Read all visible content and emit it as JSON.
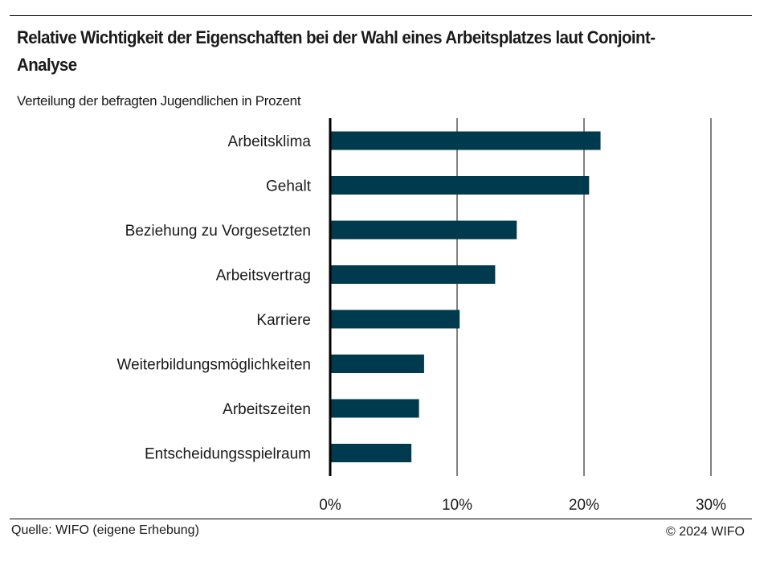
{
  "chart_data": {
    "type": "bar",
    "orientation": "horizontal",
    "title": "Relative Wichtigkeit der Eigenschaften bei der Wahl eines Arbeitsplatzes laut Conjoint- Analyse",
    "subtitle": "Verteilung der befragten Jugendlichen in Prozent",
    "categories": [
      "Arbeitsklima",
      "Gehalt",
      "Beziehung zu Vorgesetzten",
      "Arbeitsvertrag",
      "Karriere",
      "Weiterbildungsmöglichkeiten",
      "Arbeitszeiten",
      "Entscheidungsspielraum"
    ],
    "values": [
      21.3,
      20.4,
      14.7,
      13.0,
      10.2,
      7.4,
      7.0,
      6.4
    ],
    "xlabel": "",
    "ylabel": "",
    "xlim": [
      0,
      30
    ],
    "xticks": [
      0,
      10,
      20,
      30
    ],
    "xtick_labels": [
      "0%",
      "10%",
      "20%",
      "30%"
    ],
    "grid": true,
    "legend": "none",
    "bar_color": "#003a4f"
  },
  "footer": {
    "source": "Quelle: WIFO (eigene Erhebung)",
    "copyright": "© 2024 WIFO"
  }
}
